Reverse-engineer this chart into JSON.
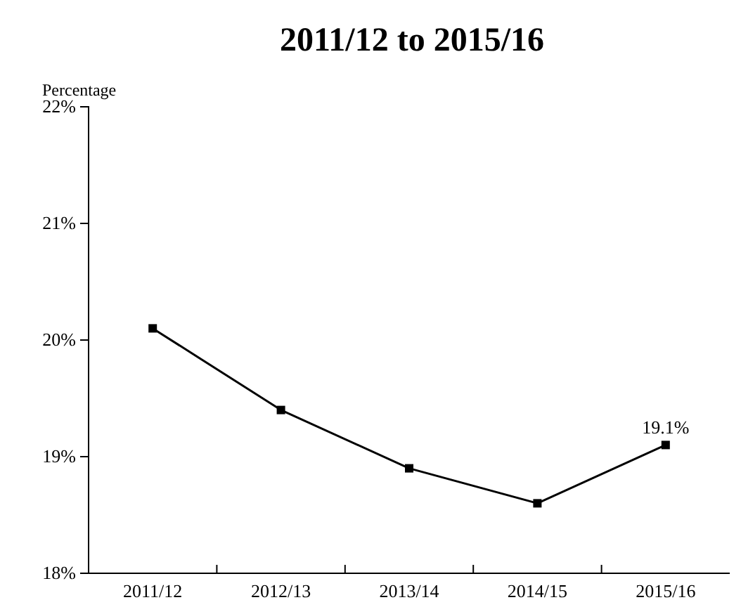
{
  "chart_data": {
    "type": "line",
    "title": "2011/12 to 2015/16",
    "ylabel": "Percentage",
    "categories": [
      "2011/12",
      "2012/13",
      "2013/14",
      "2014/15",
      "2015/16"
    ],
    "values": [
      20.1,
      19.4,
      18.9,
      18.6,
      19.1
    ],
    "value_labels": [
      null,
      null,
      null,
      null,
      "19.1%"
    ],
    "color": "#000000",
    "marker": "square",
    "line_style": "solid",
    "ylim": [
      18,
      22
    ],
    "yticks": [
      {
        "value": 18,
        "label": "18%"
      },
      {
        "value": 19,
        "label": "19%"
      },
      {
        "value": 20,
        "label": "20%"
      },
      {
        "value": 21,
        "label": "21%"
      },
      {
        "value": 22,
        "label": "22%"
      }
    ],
    "grid": false
  }
}
